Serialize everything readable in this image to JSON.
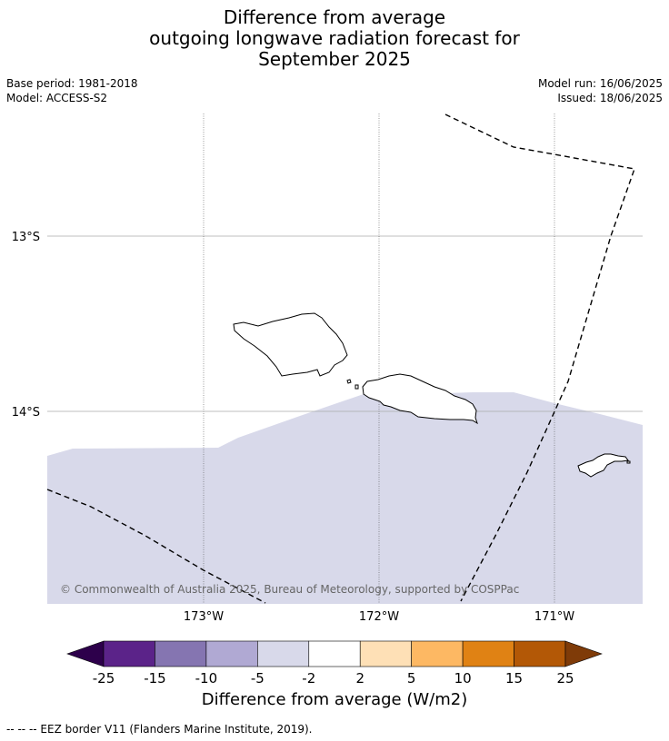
{
  "header": {
    "title_lines": [
      "Difference from average",
      "outgoing longwave radiation forecast for",
      "September 2025"
    ],
    "base_period": "Base period: 1981-2018",
    "model": "Model: ACCESS-S2",
    "model_run": "Model run: 16/06/2025",
    "issued": "Issued: 18/06/2025"
  },
  "map": {
    "lat_labels": [
      "13°S",
      "14°S"
    ],
    "lon_labels": [
      "173°W",
      "172°W",
      "171°W"
    ],
    "copyright": "© Commonwealth of Australia 2025, Bureau of Meteorology, supported by COSPPac",
    "ocean_color": "#ffffff",
    "anomaly_fill_color": "#d8d9ea",
    "anomaly_category": "-5 to -2"
  },
  "colorbar": {
    "ticks": [
      "-25",
      "-15",
      "-10",
      "-5",
      "-2",
      "2",
      "5",
      "10",
      "15",
      "25"
    ],
    "colors": [
      "#5b2389",
      "#8575b1",
      "#b0a9d3",
      "#d8d9ea",
      "#ffffff",
      "#fee0b6",
      "#fdb863",
      "#e08214",
      "#b35806"
    ],
    "under_color": "#2d004b",
    "over_color": "#7f3b08",
    "label": "Difference from average (W/m2)"
  },
  "footnote": "--  --  -- EEZ border V11 (Flanders Marine Institute, 2019)."
}
